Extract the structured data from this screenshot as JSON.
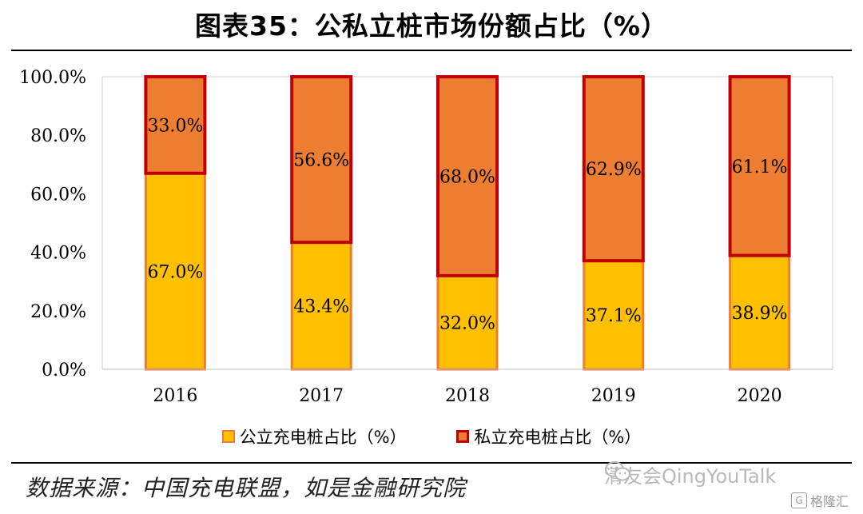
{
  "chart_data": {
    "type": "bar",
    "stacked": true,
    "title": "图表35：公私立桩市场份额占比（%）",
    "categories": [
      "2016",
      "2017",
      "2018",
      "2019",
      "2020"
    ],
    "series": [
      {
        "name": "公立充电桩占比（%）",
        "values": [
          67.0,
          43.4,
          32.0,
          37.1,
          38.9
        ],
        "labels": [
          "67.0%",
          "43.4%",
          "32.0%",
          "37.1%",
          "38.9%"
        ],
        "color": "#FFC000",
        "border": "#ED7D31"
      },
      {
        "name": "私立充电桩占比（%）",
        "values": [
          33.0,
          56.6,
          68.0,
          62.9,
          61.1
        ],
        "labels": [
          "33.0%",
          "56.6%",
          "68.0%",
          "62.9%",
          "61.1%"
        ],
        "color": "#ED7D31",
        "border": "#C00000"
      }
    ],
    "ylim": [
      0,
      100
    ],
    "yticks": [
      0,
      20,
      40,
      60,
      80,
      100
    ],
    "ytick_labels": [
      "0.0%",
      "20.0%",
      "40.0%",
      "60.0%",
      "80.0%",
      "100.0%"
    ],
    "xlabel": "",
    "ylabel": "",
    "legend": "bottom"
  },
  "source": "数据来源：中国充电联盟，如是金融研究院",
  "watermark": "清友会QingYouTalk",
  "brand": "格隆汇",
  "brand_icon": "G"
}
